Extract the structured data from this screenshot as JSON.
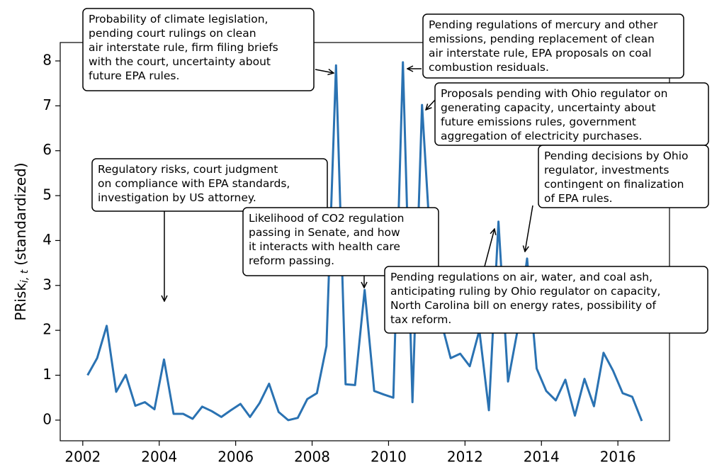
{
  "chart_data": {
    "type": "line",
    "ylabel": {
      "main": "PRisk",
      "sub": "i, t",
      "rest": "(standardized)"
    },
    "xlim": [
      2001.41,
      2017.35
    ],
    "ylim": [
      -0.46,
      8.41
    ],
    "xticks": [
      2002,
      2004,
      2006,
      2008,
      2010,
      2012,
      2014,
      2016
    ],
    "yticks": [
      0,
      1,
      2,
      3,
      4,
      5,
      6,
      7,
      8
    ],
    "series": [
      {
        "color": "#2a72b2",
        "x": [
          2002.125,
          2002.375,
          2002.625,
          2002.875,
          2003.125,
          2003.375,
          2003.625,
          2003.875,
          2004.125,
          2004.375,
          2004.625,
          2004.875,
          2005.125,
          2005.375,
          2005.625,
          2005.875,
          2006.125,
          2006.375,
          2006.625,
          2006.875,
          2007.125,
          2007.375,
          2007.625,
          2007.875,
          2008.125,
          2008.375,
          2008.625,
          2008.875,
          2009.125,
          2009.375,
          2009.625,
          2009.875,
          2010.125,
          2010.375,
          2010.625,
          2010.875,
          2011.125,
          2011.375,
          2011.625,
          2011.875,
          2012.125,
          2012.375,
          2012.625,
          2012.875,
          2013.125,
          2013.375,
          2013.625,
          2013.875,
          2014.125,
          2014.375,
          2014.625,
          2014.875,
          2015.125,
          2015.375,
          2015.625,
          2015.875,
          2016.125,
          2016.375,
          2016.625
        ],
        "values": [
          1.0,
          1.38,
          2.1,
          0.63,
          1.01,
          0.32,
          0.4,
          0.24,
          1.35,
          0.14,
          0.14,
          0.03,
          0.3,
          0.2,
          0.07,
          0.22,
          0.36,
          0.07,
          0.38,
          0.81,
          0.18,
          0.0,
          0.05,
          0.47,
          0.6,
          1.65,
          7.9,
          0.8,
          0.78,
          2.9,
          0.65,
          0.57,
          0.5,
          7.97,
          0.4,
          7.02,
          3.5,
          2.2,
          1.38,
          1.48,
          1.2,
          2.0,
          0.22,
          4.42,
          0.86,
          2.0,
          3.6,
          1.15,
          0.65,
          0.44,
          0.9,
          0.1,
          0.92,
          0.31,
          1.5,
          1.1,
          0.6,
          0.52,
          -0.02
        ]
      }
    ],
    "annotations": [
      {
        "lines": [
          "Probability of climate legislation,",
          "pending court rulings on clean",
          "air interstate rule, firm filing briefs",
          "with the court, uncertainty about",
          "future EPA rules."
        ]
      },
      {
        "lines": [
          "Pending regulations of mercury and other",
          "emissions, pending replacement of clean",
          "air interstate rule, EPA proposals on coal",
          "combustion residuals."
        ]
      },
      {
        "lines": [
          "Proposals pending with Ohio regulator on",
          "generating capacity, uncertainty about",
          "future emissions rules, government",
          "aggregation of electricity purchases."
        ]
      },
      {
        "lines": [
          "Pending decisions by Ohio",
          "regulator, investments",
          "contingent on finalization",
          "of EPA rules."
        ]
      },
      {
        "lines": [
          "Regulatory risks, court judgment",
          "on compliance with EPA standards,",
          "investigation by US attorney."
        ]
      },
      {
        "lines": [
          "Likelihood of CO2 regulation",
          "passing in Senate, and how",
          "it interacts with health care",
          "reform passing."
        ]
      },
      {
        "lines": [
          "Pending regulations on air, water, and coal ash,",
          "anticipating ruling by Ohio regulator on capacity,",
          "North Carolina bill on energy rates, possibility of",
          "tax reform."
        ]
      }
    ]
  }
}
